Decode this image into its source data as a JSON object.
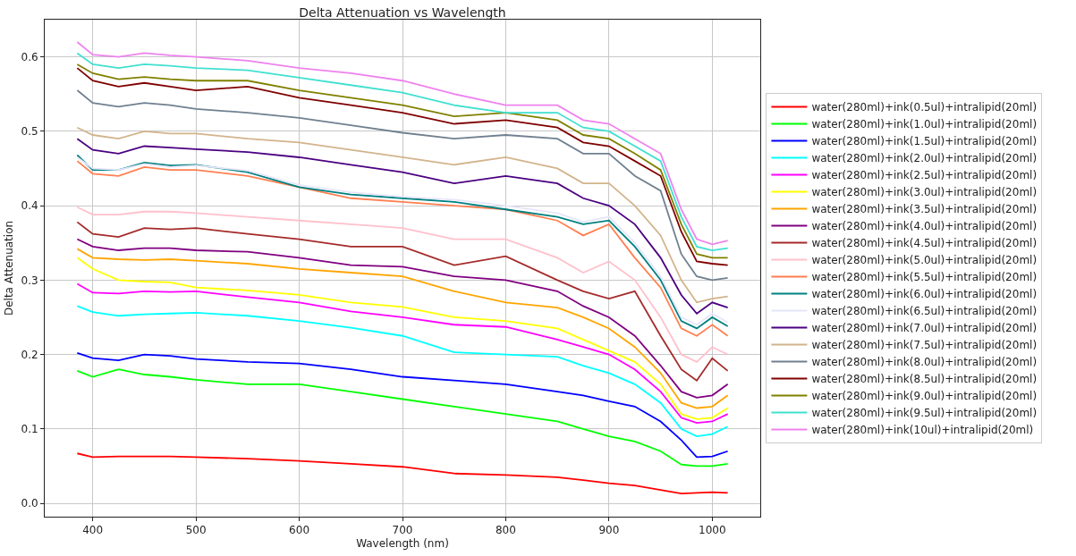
{
  "chart_data": {
    "type": "line",
    "title": "Delta Attenuation vs Wavelength",
    "xlabel": "Wavelength (nm)",
    "ylabel": "Delta Attenuation",
    "x": [
      385,
      400,
      425,
      450,
      475,
      500,
      550,
      600,
      650,
      700,
      750,
      800,
      850,
      875,
      900,
      925,
      950,
      970,
      985,
      1000,
      1015
    ],
    "xlim": [
      353.5,
      1046.5
    ],
    "xticks": [
      400,
      500,
      600,
      700,
      800,
      900,
      1000
    ],
    "ylim": [
      -0.018,
      0.65
    ],
    "yticks": [
      {
        "value": 0,
        "label": "0.0"
      },
      0.1,
      0.2,
      0.3,
      0.4,
      0.5,
      0.6
    ],
    "grid": true,
    "legend": "right",
    "line_style": "solid",
    "marker": "none",
    "series": [
      {
        "name": "water(280ml)+ink(0.5ul)+intralipid(20ml)",
        "color": "#ff0000",
        "values": [
          0.067,
          0.062,
          0.063,
          0.063,
          0.063,
          0.062,
          0.06,
          0.057,
          0.053,
          0.049,
          0.04,
          0.038,
          0.035,
          0.031,
          0.027,
          0.024,
          0.018,
          0.013,
          0.014,
          0.015,
          0.014
        ]
      },
      {
        "name": "water(280ml)+ink(1.0ul)+intralipid(20ml)",
        "color": "#00ff00",
        "values": [
          0.178,
          0.17,
          0.18,
          0.173,
          0.17,
          0.166,
          0.16,
          0.16,
          0.15,
          0.14,
          0.13,
          0.12,
          0.11,
          0.1,
          0.09,
          0.083,
          0.07,
          0.052,
          0.05,
          0.05,
          0.053
        ]
      },
      {
        "name": "water(280ml)+ink(1.5ul)+intralipid(20ml)",
        "color": "#0000ff",
        "values": [
          0.202,
          0.195,
          0.192,
          0.2,
          0.198,
          0.194,
          0.19,
          0.188,
          0.18,
          0.17,
          0.165,
          0.16,
          0.15,
          0.145,
          0.137,
          0.13,
          0.11,
          0.085,
          0.062,
          0.063,
          0.07
        ]
      },
      {
        "name": "water(280ml)+ink(2.0ul)+intralipid(20ml)",
        "color": "#00ffff",
        "values": [
          0.265,
          0.257,
          0.252,
          0.254,
          0.255,
          0.256,
          0.252,
          0.245,
          0.236,
          0.225,
          0.203,
          0.2,
          0.197,
          0.185,
          0.175,
          0.16,
          0.135,
          0.1,
          0.09,
          0.093,
          0.103
        ]
      },
      {
        "name": "water(280ml)+ink(2.5ul)+intralipid(20ml)",
        "color": "#ff00ff",
        "values": [
          0.295,
          0.283,
          0.282,
          0.285,
          0.284,
          0.285,
          0.277,
          0.27,
          0.258,
          0.25,
          0.24,
          0.237,
          0.22,
          0.21,
          0.2,
          0.18,
          0.15,
          0.115,
          0.108,
          0.11,
          0.12
        ]
      },
      {
        "name": "water(280ml)+ink(3.0ul)+intralipid(20ml)",
        "color": "#ffff00",
        "values": [
          0.33,
          0.315,
          0.3,
          0.298,
          0.297,
          0.29,
          0.286,
          0.28,
          0.27,
          0.264,
          0.25,
          0.245,
          0.235,
          0.22,
          0.205,
          0.19,
          0.16,
          0.12,
          0.113,
          0.115,
          0.128
        ]
      },
      {
        "name": "water(280ml)+ink(3.5ul)+intralipid(20ml)",
        "color": "#ffa500",
        "values": [
          0.342,
          0.33,
          0.328,
          0.327,
          0.328,
          0.326,
          0.322,
          0.315,
          0.31,
          0.305,
          0.285,
          0.27,
          0.263,
          0.25,
          0.235,
          0.21,
          0.175,
          0.135,
          0.128,
          0.13,
          0.145
        ]
      },
      {
        "name": "water(280ml)+ink(4.0ul)+intralipid(20ml)",
        "color": "#800080",
        "values": [
          0.355,
          0.345,
          0.34,
          0.343,
          0.343,
          0.34,
          0.338,
          0.33,
          0.32,
          0.318,
          0.305,
          0.3,
          0.285,
          0.265,
          0.25,
          0.225,
          0.185,
          0.15,
          0.142,
          0.145,
          0.16
        ]
      },
      {
        "name": "water(280ml)+ink(4.5ul)+intralipid(20ml)",
        "color": "#a52a2a",
        "values": [
          0.378,
          0.362,
          0.358,
          0.37,
          0.368,
          0.37,
          0.362,
          0.355,
          0.345,
          0.345,
          0.32,
          0.332,
          0.3,
          0.285,
          0.275,
          0.285,
          0.225,
          0.18,
          0.165,
          0.195,
          0.178
        ]
      },
      {
        "name": "water(280ml)+ink(5.0ul)+intralipid(20ml)",
        "color": "#ffc0cb",
        "values": [
          0.398,
          0.388,
          0.388,
          0.392,
          0.392,
          0.39,
          0.385,
          0.38,
          0.375,
          0.37,
          0.355,
          0.355,
          0.33,
          0.31,
          0.325,
          0.3,
          0.25,
          0.2,
          0.19,
          0.21,
          0.2
        ]
      },
      {
        "name": "water(280ml)+ink(5.5ul)+intralipid(20ml)",
        "color": "#ff7f50",
        "values": [
          0.46,
          0.443,
          0.44,
          0.452,
          0.448,
          0.448,
          0.44,
          0.425,
          0.41,
          0.405,
          0.4,
          0.395,
          0.38,
          0.36,
          0.375,
          0.33,
          0.29,
          0.235,
          0.225,
          0.24,
          0.225
        ]
      },
      {
        "name": "water(280ml)+ink(6.0ul)+intralipid(20ml)",
        "color": "#008080",
        "values": [
          0.468,
          0.448,
          0.448,
          0.458,
          0.454,
          0.455,
          0.445,
          0.425,
          0.415,
          0.41,
          0.405,
          0.395,
          0.385,
          0.375,
          0.38,
          0.345,
          0.3,
          0.245,
          0.235,
          0.25,
          0.238
        ]
      },
      {
        "name": "water(280ml)+ink(6.5ul)+intralipid(20ml)",
        "color": "#e6e6fa",
        "values": [
          0.465,
          0.45,
          0.448,
          0.456,
          0.452,
          0.454,
          0.447,
          0.428,
          0.418,
          0.412,
          0.408,
          0.4,
          0.39,
          0.378,
          0.385,
          0.35,
          0.305,
          0.25,
          0.24,
          0.255,
          0.243
        ]
      },
      {
        "name": "water(280ml)+ink(7.0ul)+intralipid(20ml)",
        "color": "#4b0082",
        "values": [
          0.49,
          0.475,
          0.47,
          0.48,
          0.478,
          0.476,
          0.472,
          0.465,
          0.455,
          0.445,
          0.43,
          0.44,
          0.43,
          0.41,
          0.4,
          0.375,
          0.33,
          0.28,
          0.255,
          0.27,
          0.263
        ]
      },
      {
        "name": "water(280ml)+ink(7.5ul)+intralipid(20ml)",
        "color": "#d2b48c",
        "values": [
          0.505,
          0.495,
          0.49,
          0.5,
          0.497,
          0.497,
          0.49,
          0.485,
          0.475,
          0.465,
          0.455,
          0.465,
          0.45,
          0.43,
          0.43,
          0.4,
          0.36,
          0.3,
          0.27,
          0.275,
          0.278
        ]
      },
      {
        "name": "water(280ml)+ink(8.0ul)+intralipid(20ml)",
        "color": "#708090",
        "values": [
          0.555,
          0.538,
          0.533,
          0.538,
          0.535,
          0.53,
          0.525,
          0.518,
          0.508,
          0.498,
          0.49,
          0.495,
          0.49,
          0.47,
          0.47,
          0.44,
          0.42,
          0.335,
          0.305,
          0.3,
          0.303
        ]
      },
      {
        "name": "water(280ml)+ink(8.5ul)+intralipid(20ml)",
        "color": "#800000",
        "values": [
          0.585,
          0.568,
          0.56,
          0.565,
          0.56,
          0.555,
          0.56,
          0.545,
          0.535,
          0.525,
          0.51,
          0.515,
          0.505,
          0.485,
          0.48,
          0.46,
          0.44,
          0.365,
          0.325,
          0.322,
          0.32
        ]
      },
      {
        "name": "water(280ml)+ink(9.0ul)+intralipid(20ml)",
        "color": "#808000",
        "values": [
          0.59,
          0.578,
          0.57,
          0.573,
          0.57,
          0.568,
          0.568,
          0.555,
          0.545,
          0.535,
          0.52,
          0.525,
          0.515,
          0.495,
          0.49,
          0.47,
          0.448,
          0.375,
          0.335,
          0.33,
          0.33
        ]
      },
      {
        "name": "water(280ml)+ink(9.5ul)+intralipid(20ml)",
        "color": "#40e0d0",
        "values": [
          0.605,
          0.59,
          0.585,
          0.59,
          0.588,
          0.585,
          0.582,
          0.572,
          0.562,
          0.552,
          0.535,
          0.525,
          0.525,
          0.505,
          0.5,
          0.48,
          0.46,
          0.385,
          0.345,
          0.34,
          0.343
        ]
      },
      {
        "name": "water(280ml)+ink(10ul)+intralipid(20ml)",
        "color": "#ee82ee",
        "values": [
          0.62,
          0.603,
          0.6,
          0.605,
          0.602,
          0.6,
          0.595,
          0.585,
          0.578,
          0.568,
          0.55,
          0.535,
          0.535,
          0.515,
          0.51,
          0.49,
          0.47,
          0.395,
          0.355,
          0.348,
          0.353
        ]
      }
    ]
  }
}
